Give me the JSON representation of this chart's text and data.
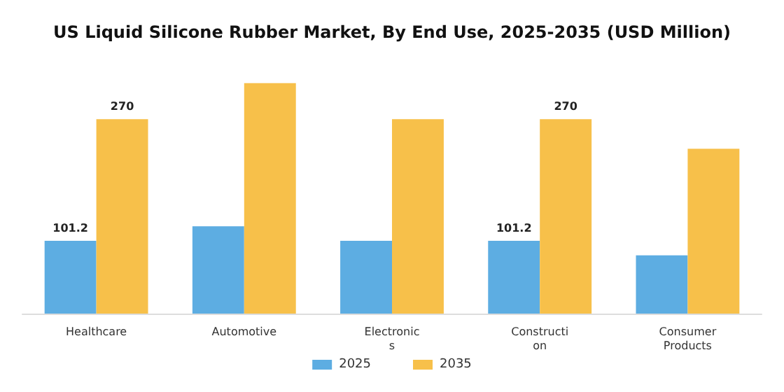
{
  "chart_data": {
    "type": "bar",
    "title": "US Liquid Silicone Rubber Market, By End Use, 2025-2035 (USD Million)",
    "categories": [
      "Healthcare",
      "Automotive",
      "Electronic\ns",
      "Constructi\non",
      "Consumer\nProducts"
    ],
    "series": [
      {
        "name": "2025",
        "color": "#5dade2",
        "values": [
          101.2,
          121.4,
          101.2,
          101.2,
          81
        ],
        "value_labels": [
          "101.2",
          null,
          null,
          "101.2",
          null
        ]
      },
      {
        "name": "2035",
        "color": "#f7c04a",
        "values": [
          270,
          320,
          270,
          270,
          229
        ],
        "value_labels": [
          "270",
          null,
          null,
          "270",
          null
        ]
      }
    ],
    "legend": "bottom"
  }
}
